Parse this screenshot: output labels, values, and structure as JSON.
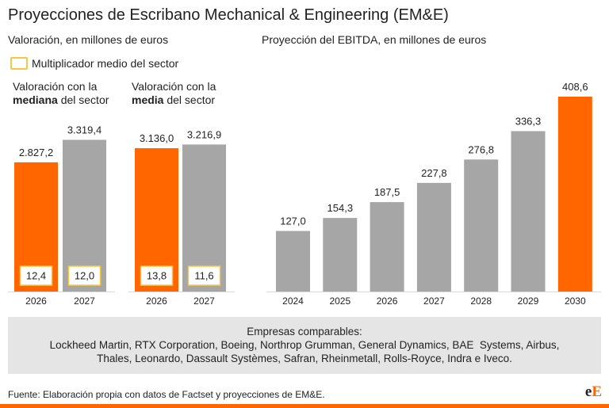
{
  "title": "Proyecciones de Escribano Mechanical & Engineering (EM&E)",
  "colors": {
    "orange": "#ff6600",
    "grey": "#a6a6a6",
    "legend_border": "#f5c842",
    "panel": "#e5e5e5"
  },
  "left_subtitle": "Valoración, en millones de euros",
  "right_subtitle": "Proyección del EBITDA, en millones de euros",
  "legend_label": "Multiplicador medio del sector",
  "groups": [
    {
      "line1": "Valoración con la",
      "bold": "mediana",
      "rest": " del sector"
    },
    {
      "line1": "Valoración con la",
      "bold": "media",
      "rest": " del sector"
    }
  ],
  "chart_data": [
    {
      "type": "bar",
      "title": "Valoración con la mediana del sector",
      "categories": [
        "2026",
        "2027"
      ],
      "values": [
        2827.2,
        3319.4
      ],
      "value_labels": [
        "2.827,2",
        "3.319,4"
      ],
      "multipliers": [
        "12,4",
        "12,0"
      ],
      "highlight": [
        true,
        false
      ],
      "ylim": [
        0,
        3900
      ]
    },
    {
      "type": "bar",
      "title": "Valoración con la media del sector",
      "categories": [
        "2026",
        "2027"
      ],
      "values": [
        3136.0,
        3216.9
      ],
      "value_labels": [
        "3.136,0",
        "3.216,9"
      ],
      "multipliers": [
        "13,8",
        "11,6"
      ],
      "highlight": [
        true,
        false
      ],
      "ylim": [
        0,
        3900
      ]
    },
    {
      "type": "bar",
      "title": "Proyección del EBITDA, en millones de euros",
      "categories": [
        "2024",
        "2025",
        "2026",
        "2027",
        "2028",
        "2029",
        "2030"
      ],
      "values": [
        127.0,
        154.3,
        187.5,
        227.8,
        276.8,
        336.3,
        408.6
      ],
      "value_labels": [
        "127,0",
        "154,3",
        "187,5",
        "227,8",
        "276,8",
        "336,3",
        "408,6"
      ],
      "highlight": [
        false,
        false,
        false,
        false,
        false,
        false,
        true
      ],
      "ylim": [
        0,
        408.6
      ]
    }
  ],
  "comparables": {
    "heading": "Empresas comparables:",
    "line1": "Lockheed Martin, RTX Corporation, Boeing, Northrop Grumman, General Dynamics, BAE  Systems, Airbus,",
    "line2": "Thales, Leonardo, Dassault Systèmes, Safran, Rheinmetall, Rolls-Royce, Indra e Iveco."
  },
  "source": "Fuente: Elaboración propia con datos de Factset y proyecciones de EM&E.",
  "logo": {
    "part1": "e",
    "part2": "E"
  }
}
